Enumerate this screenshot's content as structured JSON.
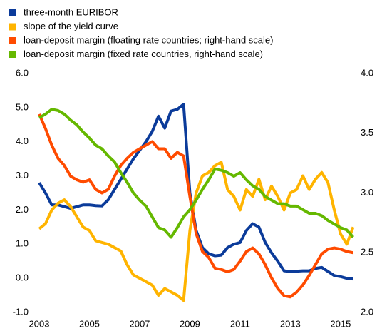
{
  "chart_data": {
    "type": "line",
    "x": [
      2003,
      2003.25,
      2003.5,
      2003.75,
      2004,
      2004.25,
      2004.5,
      2004.75,
      2005,
      2005.25,
      2005.5,
      2005.75,
      2006,
      2006.25,
      2006.5,
      2006.75,
      2007,
      2007.25,
      2007.5,
      2007.75,
      2008,
      2008.25,
      2008.5,
      2008.75,
      2009,
      2009.25,
      2009.5,
      2009.75,
      2010,
      2010.25,
      2010.5,
      2010.75,
      2011,
      2011.25,
      2011.5,
      2011.75,
      2012,
      2012.25,
      2012.5,
      2012.75,
      2013,
      2013.25,
      2013.5,
      2013.75,
      2014,
      2014.25,
      2014.5,
      2014.75,
      2015,
      2015.25,
      2015.5
    ],
    "series": [
      {
        "name": "three-month EURIBOR",
        "color": "#0b3b9a",
        "values": [
          2.8,
          2.5,
          2.15,
          2.15,
          2.1,
          2.05,
          2.1,
          2.15,
          2.15,
          2.13,
          2.12,
          2.3,
          2.6,
          2.9,
          3.2,
          3.5,
          3.75,
          4.0,
          4.3,
          4.75,
          4.4,
          4.9,
          4.95,
          5.1,
          2.5,
          1.4,
          0.9,
          0.72,
          0.66,
          0.68,
          0.9,
          1.0,
          1.05,
          1.4,
          1.6,
          1.5,
          1.05,
          0.75,
          0.5,
          0.22,
          0.2,
          0.21,
          0.22,
          0.22,
          0.29,
          0.32,
          0.2,
          0.08,
          0.05,
          0.0,
          -0.02
        ]
      },
      {
        "name": "slope of the yield curve",
        "color": "#ffb400",
        "values": [
          1.45,
          1.6,
          2.0,
          2.2,
          2.3,
          2.1,
          1.8,
          1.5,
          1.4,
          1.1,
          1.05,
          1.0,
          0.9,
          0.8,
          0.4,
          0.1,
          0.0,
          -0.1,
          -0.2,
          -0.5,
          -0.3,
          -0.4,
          -0.5,
          -0.65,
          1.4,
          2.5,
          3.0,
          3.1,
          3.3,
          3.4,
          2.6,
          2.4,
          2.0,
          2.6,
          2.4,
          2.9,
          2.3,
          2.7,
          2.4,
          2.0,
          2.5,
          2.6,
          3.0,
          2.6,
          2.9,
          3.1,
          2.8,
          2.0,
          1.3,
          1.0,
          1.5
        ]
      },
      {
        "name": "loan-deposit margin (floating rate countries; right-hand scale)",
        "color": "#ff4b00",
        "axis": "y2",
        "values": [
          3.66,
          3.54,
          3.4,
          3.29,
          3.23,
          3.14,
          3.11,
          3.09,
          3.11,
          3.03,
          3.0,
          3.03,
          3.14,
          3.23,
          3.29,
          3.34,
          3.37,
          3.4,
          3.43,
          3.37,
          3.37,
          3.29,
          3.34,
          3.31,
          2.97,
          2.66,
          2.51,
          2.46,
          2.37,
          2.36,
          2.34,
          2.36,
          2.43,
          2.51,
          2.54,
          2.49,
          2.4,
          2.29,
          2.2,
          2.14,
          2.13,
          2.17,
          2.23,
          2.31,
          2.4,
          2.49,
          2.53,
          2.54,
          2.53,
          2.51,
          2.5
        ]
      },
      {
        "name": "loan-deposit margin (fixed rate countries, right-hand scale)",
        "color": "#65b800",
        "axis": "y2",
        "values": [
          3.63,
          3.66,
          3.7,
          3.69,
          3.66,
          3.61,
          3.57,
          3.51,
          3.46,
          3.4,
          3.37,
          3.31,
          3.26,
          3.17,
          3.09,
          3.0,
          2.94,
          2.89,
          2.8,
          2.71,
          2.69,
          2.63,
          2.71,
          2.8,
          2.86,
          2.94,
          3.03,
          3.11,
          3.2,
          3.19,
          3.17,
          3.14,
          3.17,
          3.11,
          3.06,
          3.03,
          2.97,
          2.94,
          2.91,
          2.91,
          2.89,
          2.89,
          2.86,
          2.83,
          2.83,
          2.81,
          2.77,
          2.74,
          2.71,
          2.69,
          2.63
        ]
      }
    ],
    "xlim": [
      2003,
      2015.6
    ],
    "xticks": [
      2003,
      2005,
      2007,
      2009,
      2011,
      2013,
      2015
    ],
    "ylim": [
      -1,
      6
    ],
    "yticks": [
      {
        "value": 6,
        "label": "6.0"
      },
      {
        "value": 5,
        "label": "5.0"
      },
      {
        "value": 4,
        "label": "4.0"
      },
      {
        "value": 3,
        "label": "3.0"
      },
      {
        "value": 2,
        "label": "2.0"
      },
      {
        "value": 1,
        "label": "1.0"
      },
      {
        "value": 0,
        "label": "0.0"
      },
      {
        "value": -1,
        "label": "-1.0"
      }
    ],
    "y2lim": [
      2,
      4
    ],
    "y2ticks": [
      {
        "value": 4,
        "label": "4.0"
      },
      {
        "value": 3.5,
        "label": "3.5"
      },
      {
        "value": 3,
        "label": "3.0"
      },
      {
        "value": 2.5,
        "label": "2.5"
      },
      {
        "value": 2,
        "label": "2.0"
      }
    ]
  }
}
